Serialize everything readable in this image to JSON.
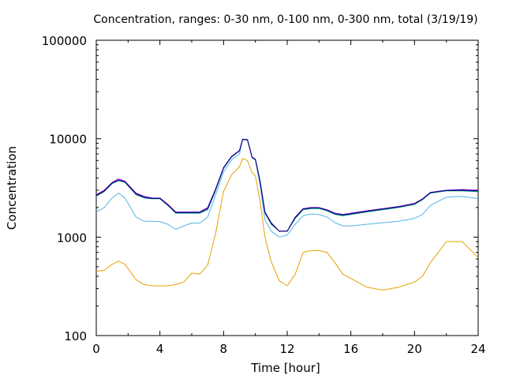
{
  "chart_data": {
    "type": "line",
    "title": "Concentration, ranges: 0-30 nm, 0-100 nm, 0-300 nm, total (3/19/19)",
    "xlabel": "Time [hour]",
    "ylabel": "Concentration",
    "xlim": [
      0,
      24
    ],
    "ylim": [
      100,
      100000
    ],
    "yscale": "log",
    "grid": false,
    "x_ticks": [
      "0",
      "4",
      "8",
      "12",
      "16",
      "20",
      "24"
    ],
    "y_ticks": [
      "100",
      "1000",
      "10000",
      "100000"
    ],
    "x": [
      0,
      0.5,
      1,
      1.4,
      1.8,
      2.5,
      3,
      3.5,
      4,
      4.5,
      5,
      5.5,
      6,
      6.5,
      7,
      7.5,
      8,
      8.5,
      9,
      9.2,
      9.5,
      9.8,
      10,
      10.3,
      10.6,
      11,
      11.5,
      12,
      12.5,
      13,
      13.5,
      14,
      14.5,
      15,
      15.5,
      16,
      17,
      18,
      19,
      20,
      20.5,
      21,
      22,
      23,
      24
    ],
    "series": [
      {
        "color": "#e6a000",
        "values": [
          450,
          460,
          530,
          570,
          530,
          370,
          330,
          320,
          320,
          320,
          330,
          350,
          430,
          420,
          520,
          1100,
          2900,
          4300,
          5200,
          6300,
          6000,
          4500,
          4200,
          2300,
          1000,
          560,
          360,
          320,
          420,
          700,
          730,
          730,
          700,
          550,
          420,
          380,
          310,
          290,
          310,
          350,
          400,
          550,
          900,
          900,
          620
        ]
      },
      {
        "color": "#56b4e9",
        "values": [
          1800,
          2000,
          2500,
          2800,
          2500,
          1600,
          1450,
          1450,
          1440,
          1350,
          1200,
          1300,
          1390,
          1390,
          1600,
          2700,
          4600,
          6100,
          7000,
          9800,
          9700,
          6400,
          6100,
          3300,
          1500,
          1150,
          1000,
          1050,
          1350,
          1650,
          1720,
          1700,
          1600,
          1400,
          1300,
          1300,
          1350,
          1400,
          1450,
          1550,
          1700,
          2100,
          2550,
          2600,
          2450
        ]
      },
      {
        "color": "#009e73",
        "values": [
          2600,
          2900,
          3500,
          3750,
          3600,
          2700,
          2500,
          2450,
          2450,
          2100,
          1750,
          1750,
          1750,
          1750,
          1900,
          3000,
          5000,
          6500,
          7500,
          9800,
          9700,
          6400,
          6100,
          3600,
          1750,
          1350,
          1150,
          1150,
          1550,
          1900,
          1950,
          1950,
          1850,
          1700,
          1650,
          1700,
          1800,
          1900,
          2000,
          2150,
          2400,
          2800,
          2950,
          2950,
          2900
        ]
      },
      {
        "color": "#9400d3",
        "values": [
          2700,
          3000,
          3600,
          3900,
          3700,
          2800,
          2600,
          2500,
          2500,
          2150,
          1800,
          1800,
          1800,
          1800,
          2000,
          3100,
          5100,
          6600,
          7600,
          9900,
          9800,
          6500,
          6200,
          3700,
          1800,
          1400,
          1150,
          1150,
          1600,
          1950,
          2000,
          2000,
          1900,
          1750,
          1700,
          1750,
          1850,
          1950,
          2050,
          2200,
          2450,
          2850,
          3000,
          3050,
          3000
        ]
      },
      {
        "color": "#000080",
        "values": [
          2650,
          2950,
          3550,
          3800,
          3650,
          2750,
          2550,
          2480,
          2480,
          2120,
          1780,
          1780,
          1780,
          1780,
          1950,
          3050,
          5050,
          6550,
          7550,
          9850,
          9750,
          6450,
          6150,
          3650,
          1780,
          1380,
          1150,
          1150,
          1580,
          1930,
          1980,
          1980,
          1880,
          1730,
          1680,
          1730,
          1830,
          1930,
          2030,
          2180,
          2430,
          2830,
          2980,
          3000,
          2950
        ]
      }
    ]
  }
}
